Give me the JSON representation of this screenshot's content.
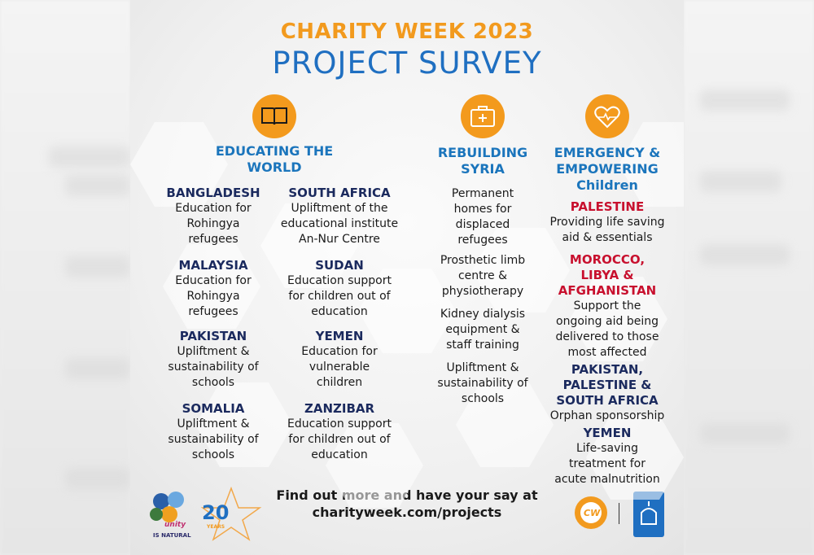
{
  "header": {
    "title": "CHARITY WEEK 2023",
    "subtitle": "PROJECT SURVEY"
  },
  "sections": [
    {
      "heading": [
        "EDUCATING THE",
        "WORLD"
      ],
      "columns": [
        [
          {
            "name": [
              "BANGLADESH"
            ],
            "desc": [
              "Education for",
              "Rohingya",
              "refugees"
            ]
          },
          {
            "name": [
              "MALAYSIA"
            ],
            "desc": [
              "Education for",
              "Rohingya",
              "refugees"
            ]
          },
          {
            "name": [
              "PAKISTAN"
            ],
            "desc": [
              "Upliftment &",
              "sustainability of",
              "schools"
            ]
          },
          {
            "name": [
              "SOMALIA"
            ],
            "desc": [
              "Upliftment &",
              "sustainability of",
              "schools"
            ]
          }
        ],
        [
          {
            "name": [
              "SOUTH AFRICA"
            ],
            "desc": [
              "Upliftment of the",
              "educational institute",
              "An-Nur Centre"
            ]
          },
          {
            "name": [
              "SUDAN"
            ],
            "desc": [
              "Education support",
              "for children out of",
              "education"
            ]
          },
          {
            "name": [
              "YEMEN"
            ],
            "desc": [
              "Education for",
              "vulnerable",
              "children"
            ]
          },
          {
            "name": [
              "ZANZIBAR"
            ],
            "desc": [
              "Education support",
              "for children out of",
              "education"
            ]
          }
        ]
      ]
    },
    {
      "heading": [
        "REBUILDING",
        "SYRIA"
      ],
      "columns": [
        [
          {
            "desc": [
              "Permanent",
              "homes for",
              "displaced",
              "refugees"
            ]
          },
          {
            "desc": [
              "Prosthetic limb",
              "centre &",
              "physiotherapy"
            ]
          },
          {
            "desc": [
              "Kidney dialysis",
              "equipment &",
              "staff training"
            ]
          },
          {
            "desc": [
              "Upliftment &",
              "sustainability of",
              "schools"
            ]
          }
        ]
      ]
    },
    {
      "heading": [
        "EMERGENCY &",
        "EMPOWERING",
        "Children"
      ],
      "columns": [
        [
          {
            "name": [
              "PALESTINE"
            ],
            "desc": [
              "Providing life saving",
              "aid & essentials"
            ]
          },
          {
            "name": [
              "MOROCCO,",
              "LIBYA &",
              "AFGHANISTAN"
            ],
            "desc": [
              "Support the",
              "ongoing aid being",
              "delivered to those",
              "most affected"
            ]
          },
          {
            "name": [
              "PAKISTAN,",
              "PALESTINE &",
              "SOUTH AFRICA"
            ],
            "desc": [
              "Orphan sponsorship"
            ]
          },
          {
            "name": [
              "YEMEN"
            ],
            "desc": [
              "Life-saving",
              "treatment for",
              "acute malnutrition"
            ]
          }
        ]
      ]
    }
  ],
  "footer": [
    "Find out more and have your say at",
    "charityweek.com/projects"
  ],
  "logos": {
    "unity": "unity",
    "natural": "IS NATURAL",
    "years": "20",
    "years_label": "YEARS",
    "cw": "CW"
  }
}
